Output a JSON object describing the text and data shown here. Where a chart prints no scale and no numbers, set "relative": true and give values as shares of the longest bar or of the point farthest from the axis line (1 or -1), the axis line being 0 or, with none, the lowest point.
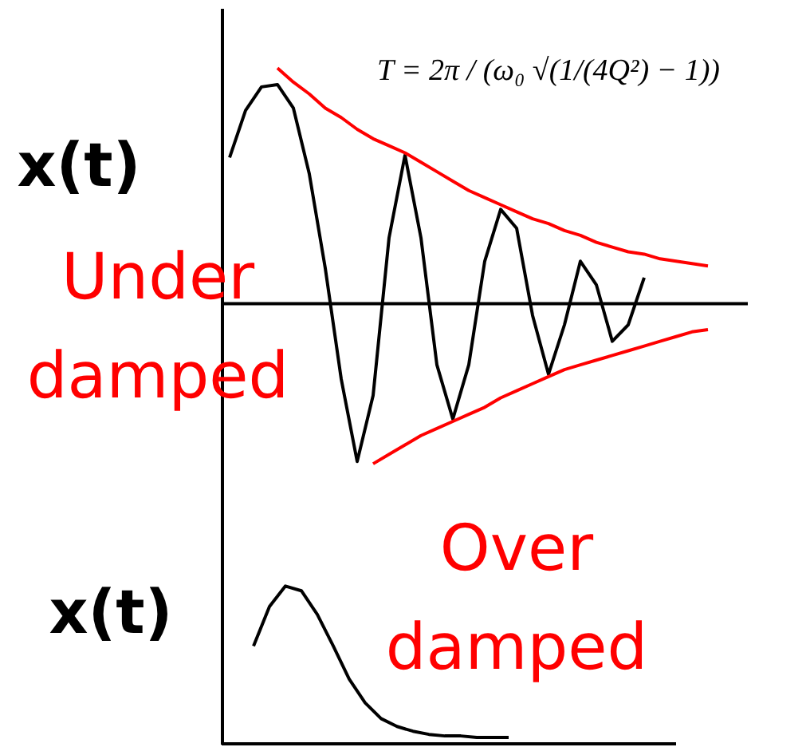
{
  "chart_data": [
    {
      "type": "line",
      "relative": true,
      "ylabel": "x(t)",
      "grid": false,
      "legend": false,
      "tick_labels": false,
      "categories": [
        null,
        null,
        null,
        null,
        null,
        null,
        null,
        null,
        null,
        null,
        null,
        null,
        null,
        null,
        null,
        null,
        null,
        null,
        null,
        null,
        null,
        null,
        null,
        null,
        null,
        null,
        null,
        null,
        null,
        null,
        null
      ],
      "annotations": [
        "T = 2π / (ω₀ √(1/(4Q²) − 1))",
        "Under damped"
      ],
      "series": [
        {
          "color": "#000000",
          "values": [
            0.62,
            0.82,
            0.92,
            0.93,
            0.83,
            0.55,
            0.15,
            -0.32,
            -0.67,
            -0.39,
            0.28,
            0.63,
            0.28,
            -0.26,
            -0.49,
            -0.26,
            0.18,
            0.4,
            0.32,
            -0.05,
            -0.3,
            -0.09,
            0.18,
            0.08,
            -0.16,
            -0.09,
            0.11,
            null,
            null,
            null,
            null
          ]
        },
        {
          "color": "#ff0000",
          "values": [
            null,
            null,
            null,
            1.0,
            0.94,
            0.89,
            0.83,
            0.79,
            0.74,
            0.7,
            0.67,
            0.64,
            0.6,
            0.56,
            0.52,
            0.48,
            0.45,
            0.42,
            0.39,
            0.36,
            0.34,
            0.31,
            0.29,
            0.26,
            0.24,
            0.22,
            0.21,
            0.19,
            0.18,
            0.17,
            0.16
          ]
        },
        {
          "color": "#ff0000",
          "values": [
            null,
            null,
            null,
            null,
            null,
            null,
            null,
            null,
            null,
            -0.68,
            -0.64,
            -0.6,
            -0.56,
            -0.53,
            -0.5,
            -0.47,
            -0.44,
            -0.4,
            -0.37,
            -0.34,
            -0.31,
            -0.28,
            -0.26,
            -0.24,
            -0.22,
            -0.2,
            -0.18,
            -0.16,
            -0.14,
            -0.12,
            -0.11
          ]
        }
      ]
    },
    {
      "type": "line",
      "relative": true,
      "ylabel": "x(t)",
      "grid": false,
      "legend": false,
      "tick_labels": false,
      "categories": [
        null,
        null,
        null,
        null,
        null,
        null,
        null,
        null,
        null,
        null,
        null,
        null,
        null,
        null,
        null,
        null,
        null
      ],
      "annotations": [
        "Over damped"
      ],
      "series": [
        {
          "color": "#000000",
          "values": [
            0.62,
            0.87,
            1.0,
            0.97,
            0.82,
            0.62,
            0.41,
            0.26,
            0.16,
            0.11,
            0.08,
            0.06,
            0.05,
            0.05,
            0.04,
            0.04,
            0.04
          ]
        }
      ]
    }
  ]
}
